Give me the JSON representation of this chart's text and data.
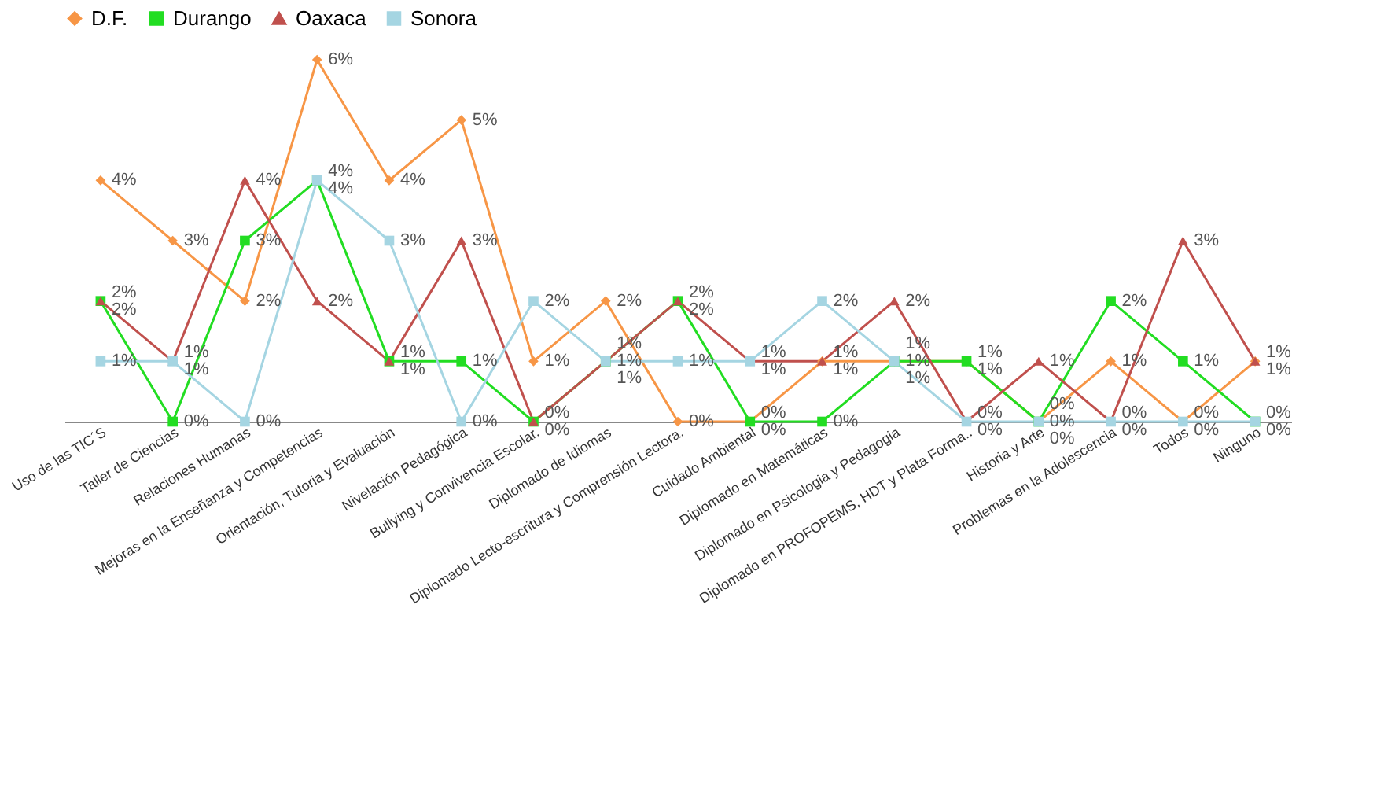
{
  "chart_data": {
    "type": "line",
    "categories": [
      "Uso de las TIC´S",
      "Taller de Ciencias",
      "Relaciones Humanas",
      "Mejoras en la Enseñanza y Competencias",
      "Orientación, Tutoria y Evaluación",
      "Nivelación Pedagógica",
      "Bullying y Convivencia Escolar.",
      "Diplomado de Idiomas",
      "Diplomado Lecto-escritura y Comprensión Lectora.",
      "Cuidado Ambiental",
      "Diplomado en Matemáticas",
      "Diplomado en Psicologia y Pedagogia",
      "Diplomado en PROFOPEMS, HDT y Plata Forma..",
      "Historia y Arte",
      "Problemas en la Adolescencia",
      "Todos",
      "Ninguno"
    ],
    "series": [
      {
        "name": "D.F.",
        "color": "#f79646",
        "marker": "diamond",
        "values": [
          4,
          3,
          2,
          6,
          4,
          5,
          1,
          2,
          0,
          0,
          1,
          1,
          1,
          0,
          1,
          0,
          1
        ],
        "value_labels": [
          "4%",
          "3%",
          "2%",
          "6%",
          "4%",
          "5%",
          "1%",
          "2%",
          "0%",
          "0%",
          "1%",
          "1%",
          "1%",
          "0%",
          "1%",
          "0%",
          "1%"
        ]
      },
      {
        "name": "Durango",
        "color": "#22dd22",
        "marker": "square",
        "values": [
          2,
          0,
          3,
          4,
          1,
          1,
          0,
          1,
          2,
          0,
          0,
          1,
          1,
          0,
          2,
          1,
          0
        ],
        "value_labels": [
          "2%",
          "0%",
          "3%",
          "4%",
          "1%",
          "1%",
          "0%",
          "1%",
          "2%",
          "0%",
          "0%",
          "1%",
          "1%",
          "0%",
          "2%",
          "1%",
          "0%"
        ]
      },
      {
        "name": "Oaxaca",
        "color": "#c0504d",
        "marker": "triangle",
        "values": [
          2,
          1,
          4,
          2,
          1,
          3,
          0,
          1,
          2,
          1,
          1,
          2,
          0,
          1,
          0,
          3,
          1
        ],
        "value_labels": [
          "2%",
          "1%",
          "4%",
          "2%",
          "1%",
          "3%",
          "0%",
          "1%",
          "2%",
          "1%",
          "1%",
          "2%",
          "0%",
          "1%",
          "0%",
          "3%",
          "1%"
        ]
      },
      {
        "name": "Sonora",
        "color": "#a5d5e2",
        "marker": "square",
        "values": [
          1,
          1,
          0,
          4,
          3,
          0,
          2,
          1,
          1,
          1,
          2,
          1,
          0,
          0,
          0,
          0,
          0
        ],
        "value_labels": [
          "1%",
          "1%",
          "0%",
          "4%",
          "3%",
          "0%",
          "2%",
          "1%",
          "1%",
          "1%",
          "2%",
          "1%",
          "0%",
          "0%",
          "0%",
          "0%",
          "0%"
        ]
      }
    ],
    "legend": "top",
    "grid": false,
    "tick_labels": "x"
  }
}
